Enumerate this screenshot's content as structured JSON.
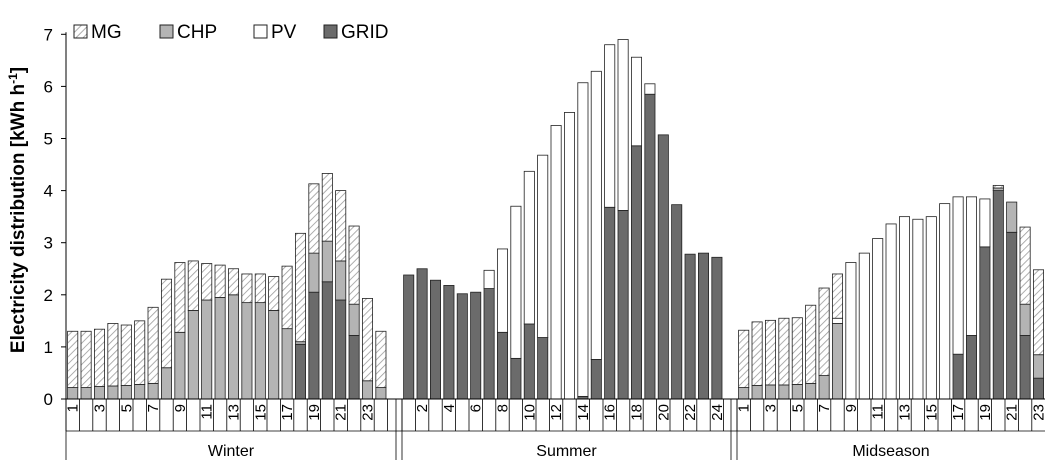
{
  "chart_data": {
    "type": "bar",
    "stacked": true,
    "ylabel": "Electricity distribution [kWh h",
    "ylabel_sup": "-1",
    "ylabel_end": "]",
    "ylim": [
      0,
      7
    ],
    "yticks": [
      "0",
      "1",
      "2",
      "3",
      "4",
      "5",
      "6",
      "7"
    ],
    "legend": {
      "placement": "top-left",
      "entries": [
        {
          "label": "MG",
          "key": "MG"
        },
        {
          "label": "CHP",
          "key": "CHP"
        },
        {
          "label": "PV",
          "key": "PV"
        },
        {
          "label": "GRID",
          "key": "GRID"
        }
      ]
    },
    "colors": {
      "GRID": "#6b6b6b",
      "PV": "#ffffff",
      "CHP": "#b4b4b4",
      "MG_hatch": "#9a9a9a",
      "edge": "#222222"
    },
    "stack_order": [
      "GRID",
      "CHP",
      "PV",
      "MG"
    ],
    "groups": [
      {
        "name": "Winter",
        "hour_labels": [
          "1",
          "3",
          "5",
          "7",
          "9",
          "11",
          "13",
          "15",
          "17",
          "19",
          "21",
          "23"
        ],
        "label_step": 2,
        "label_offset": 0,
        "series": {
          "GRID": [
            0,
            0,
            0,
            0,
            0,
            0,
            0,
            0,
            0,
            0,
            0,
            0,
            0,
            0,
            0,
            0,
            0,
            1.05,
            2.05,
            2.25,
            1.9,
            1.22,
            0,
            0
          ],
          "CHP": [
            0.22,
            0.22,
            0.24,
            0.25,
            0.26,
            0.28,
            0.3,
            0.6,
            1.28,
            1.7,
            1.9,
            1.95,
            2.0,
            1.85,
            1.85,
            1.7,
            1.35,
            0.05,
            0.75,
            0.78,
            0.75,
            0.6,
            0.35,
            0.22
          ],
          "PV": [
            0,
            0,
            0,
            0,
            0,
            0,
            0,
            0,
            0,
            0,
            0,
            0,
            0,
            0,
            0,
            0,
            0,
            0,
            0,
            0,
            0,
            0,
            0,
            0
          ],
          "MG": [
            1.08,
            1.08,
            1.1,
            1.2,
            1.16,
            1.22,
            1.46,
            1.7,
            1.34,
            0.95,
            0.7,
            0.62,
            0.5,
            0.55,
            0.55,
            0.65,
            1.2,
            2.08,
            1.33,
            1.3,
            1.35,
            1.5,
            1.58,
            1.08
          ]
        }
      },
      {
        "name": "Summer",
        "hour_labels": [
          "2",
          "4",
          "6",
          "8",
          "10",
          "12",
          "14",
          "16",
          "18",
          "20",
          "22",
          "24"
        ],
        "label_step": 2,
        "label_offset": 1,
        "series": {
          "GRID": [
            2.38,
            2.5,
            2.28,
            2.18,
            2.02,
            2.05,
            2.12,
            1.28,
            0.78,
            1.44,
            1.18,
            0,
            0,
            0.05,
            0.76,
            3.68,
            3.62,
            4.86,
            5.85,
            5.07,
            3.73,
            2.78,
            2.8,
            2.72
          ],
          "CHP": [
            0,
            0,
            0,
            0,
            0,
            0,
            0,
            0,
            0,
            0,
            0,
            0,
            0,
            0,
            0,
            0,
            0,
            0,
            0,
            0,
            0,
            0,
            0,
            0
          ],
          "PV": [
            0,
            0,
            0,
            0,
            0,
            0,
            0.35,
            1.6,
            2.92,
            2.93,
            3.5,
            5.25,
            5.5,
            6.02,
            5.53,
            3.12,
            3.28,
            1.7,
            0.2,
            0,
            0,
            0,
            0,
            0
          ],
          "MG": [
            0,
            0,
            0,
            0,
            0,
            0,
            0,
            0,
            0,
            0,
            0,
            0,
            0,
            0,
            0,
            0,
            0,
            0,
            0,
            0,
            0,
            0,
            0,
            0
          ]
        }
      },
      {
        "name": "Midseason",
        "hour_labels": [
          "1",
          "3",
          "5",
          "7",
          "9",
          "11",
          "13",
          "15",
          "17",
          "19",
          "21",
          "23"
        ],
        "label_step": 2,
        "label_offset": 0,
        "series": {
          "GRID": [
            0,
            0,
            0,
            0,
            0,
            0,
            0,
            0,
            0,
            0,
            0,
            0,
            0,
            0,
            0,
            0,
            0.86,
            1.22,
            2.92,
            4.0,
            3.2,
            1.22,
            0.4,
            0
          ],
          "CHP": [
            0.22,
            0.26,
            0.27,
            0.27,
            0.28,
            0.3,
            0.45,
            1.45,
            0,
            0,
            0,
            0,
            0,
            0,
            0,
            0,
            0,
            0,
            0,
            0.05,
            0.58,
            0.6,
            0.45,
            0.28
          ],
          "PV": [
            0,
            0,
            0,
            0,
            0,
            0,
            0,
            0.1,
            2.62,
            2.8,
            3.08,
            3.36,
            3.5,
            3.45,
            3.5,
            3.75,
            3.02,
            2.66,
            0.92,
            0,
            0,
            0,
            0,
            0
          ],
          "MG": [
            1.1,
            1.22,
            1.24,
            1.28,
            1.28,
            1.5,
            1.68,
            0.85,
            0,
            0,
            0,
            0,
            0,
            0,
            0,
            0,
            0,
            0,
            0,
            0.05,
            0,
            1.48,
            1.63,
            1.35
          ]
        }
      }
    ]
  }
}
